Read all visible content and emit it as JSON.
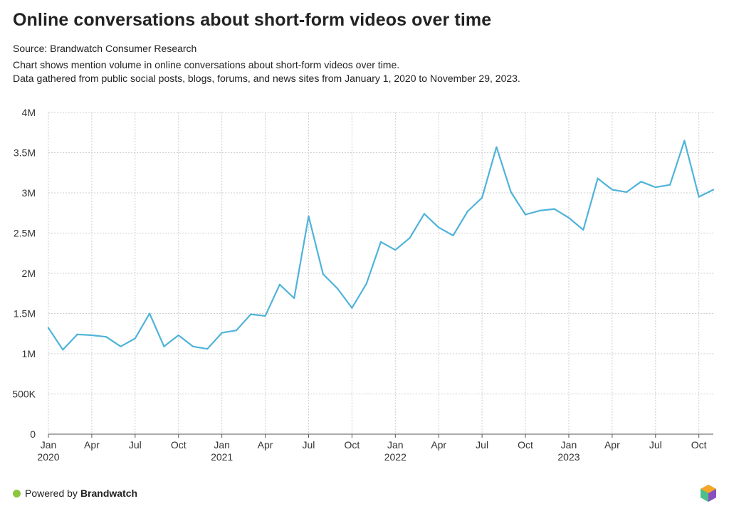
{
  "header": {
    "title": "Online conversations about short-form videos over time",
    "source": "Source: Brandwatch Consumer Research",
    "description_line1": "Chart shows mention volume in online conversations about short-form videos over time.",
    "description_line2": "Data gathered from public social posts, blogs, forums, and news sites from January 1, 2020 to November 29, 2023."
  },
  "footer": {
    "powered_prefix": "Powered by",
    "brand": "Brandwatch",
    "dot_color": "#8cc63f"
  },
  "chart_data": {
    "type": "line",
    "title": "Online conversations about short-form videos over time",
    "xlabel": "",
    "ylabel": "",
    "ylim": [
      0,
      4000000
    ],
    "grid": true,
    "line_color": "#4fb3d9",
    "y_ticks": [
      {
        "value": 0,
        "label": "0"
      },
      {
        "value": 500000,
        "label": "500K"
      },
      {
        "value": 1000000,
        "label": "1M"
      },
      {
        "value": 1500000,
        "label": "1.5M"
      },
      {
        "value": 2000000,
        "label": "2M"
      },
      {
        "value": 2500000,
        "label": "2.5M"
      },
      {
        "value": 3000000,
        "label": "3M"
      },
      {
        "value": 3500000,
        "label": "3.5M"
      },
      {
        "value": 4000000,
        "label": "4M"
      }
    ],
    "x_ticks": [
      {
        "month": "2020-01",
        "label": "Jan",
        "year": "2020"
      },
      {
        "month": "2020-04",
        "label": "Apr"
      },
      {
        "month": "2020-07",
        "label": "Jul"
      },
      {
        "month": "2020-10",
        "label": "Oct"
      },
      {
        "month": "2021-01",
        "label": "Jan",
        "year": "2021"
      },
      {
        "month": "2021-04",
        "label": "Apr"
      },
      {
        "month": "2021-07",
        "label": "Jul"
      },
      {
        "month": "2021-10",
        "label": "Oct"
      },
      {
        "month": "2022-01",
        "label": "Jan",
        "year": "2022"
      },
      {
        "month": "2022-04",
        "label": "Apr"
      },
      {
        "month": "2022-07",
        "label": "Jul"
      },
      {
        "month": "2022-10",
        "label": "Oct"
      },
      {
        "month": "2023-01",
        "label": "Jan",
        "year": "2023"
      },
      {
        "month": "2023-04",
        "label": "Apr"
      },
      {
        "month": "2023-07",
        "label": "Jul"
      },
      {
        "month": "2023-10",
        "label": "Oct"
      }
    ],
    "x": [
      "2020-01",
      "2020-02",
      "2020-03",
      "2020-04",
      "2020-05",
      "2020-06",
      "2020-07",
      "2020-08",
      "2020-09",
      "2020-10",
      "2020-11",
      "2020-12",
      "2021-01",
      "2021-02",
      "2021-03",
      "2021-04",
      "2021-05",
      "2021-06",
      "2021-07",
      "2021-08",
      "2021-09",
      "2021-10",
      "2021-11",
      "2021-12",
      "2022-01",
      "2022-02",
      "2022-03",
      "2022-04",
      "2022-05",
      "2022-06",
      "2022-07",
      "2022-08",
      "2022-09",
      "2022-10",
      "2022-11",
      "2022-12",
      "2023-01",
      "2023-02",
      "2023-03",
      "2023-04",
      "2023-05",
      "2023-06",
      "2023-07",
      "2023-08",
      "2023-09",
      "2023-10",
      "2023-11"
    ],
    "series": [
      {
        "values": [
          1320000,
          1050000,
          1240000,
          1230000,
          1210000,
          1090000,
          1190000,
          1500000,
          1090000,
          1230000,
          1090000,
          1060000,
          1260000,
          1290000,
          1490000,
          1470000,
          1860000,
          1690000,
          2710000,
          1990000,
          1810000,
          1570000,
          1870000,
          2390000,
          2290000,
          2440000,
          2740000,
          2570000,
          2470000,
          2770000,
          2940000,
          3570000,
          3010000,
          2730000,
          2780000,
          2800000,
          2690000,
          2540000,
          3180000,
          3040000,
          3010000,
          3140000,
          3070000,
          3100000,
          3650000,
          2950000,
          3040000
        ]
      }
    ]
  }
}
